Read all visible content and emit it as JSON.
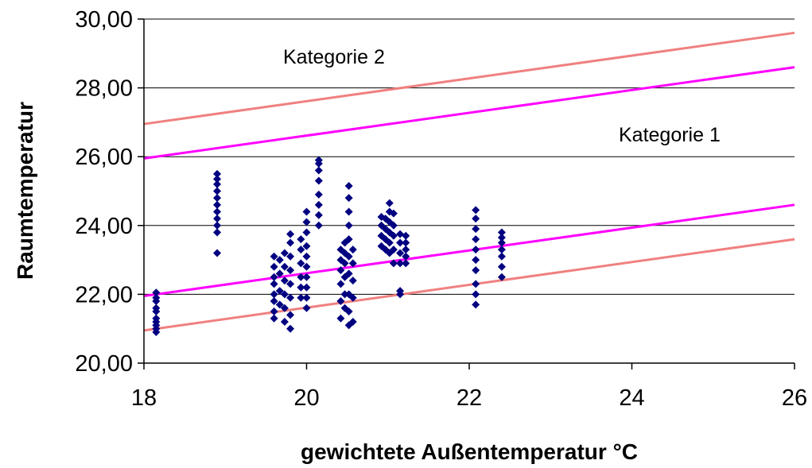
{
  "chart_data": {
    "type": "scatter",
    "title": "",
    "xlabel": "gewichtete Außentemperatur °C",
    "ylabel": "Raumtemperatur",
    "xlim": [
      18,
      26
    ],
    "ylim": [
      20,
      30
    ],
    "x_ticks": [
      "18",
      "20",
      "22",
      "24",
      "26"
    ],
    "y_ticks": [
      "20,00",
      "22,00",
      "24,00",
      "26,00",
      "28,00",
      "30,00"
    ],
    "grid": "horizontal",
    "annotations": [
      {
        "text": "Kategorie 2"
      },
      {
        "text": "Kategorie 1"
      }
    ],
    "colors": {
      "points": "#000080",
      "category1": "#ff00ff",
      "category2": "#f08080",
      "grid": "#000000"
    },
    "lines": [
      {
        "category": "Kategorie 2",
        "bound": "upper",
        "x": [
          18,
          26
        ],
        "y": [
          26.95,
          29.6
        ]
      },
      {
        "category": "Kategorie 1",
        "bound": "upper",
        "x": [
          18,
          26
        ],
        "y": [
          25.95,
          28.6
        ]
      },
      {
        "category": "Kategorie 1",
        "bound": "lower",
        "x": [
          18,
          26
        ],
        "y": [
          21.95,
          24.6
        ]
      },
      {
        "category": "Kategorie 2",
        "bound": "lower",
        "x": [
          18,
          26
        ],
        "y": [
          20.95,
          23.6
        ]
      }
    ],
    "points": [
      {
        "x": 18.15,
        "y": 20.9
      },
      {
        "x": 18.15,
        "y": 21.0
      },
      {
        "x": 18.15,
        "y": 21.1
      },
      {
        "x": 18.15,
        "y": 21.2
      },
      {
        "x": 18.15,
        "y": 21.3
      },
      {
        "x": 18.15,
        "y": 21.5
      },
      {
        "x": 18.15,
        "y": 21.6
      },
      {
        "x": 18.15,
        "y": 21.8
      },
      {
        "x": 18.15,
        "y": 21.9
      },
      {
        "x": 18.15,
        "y": 22.05
      },
      {
        "x": 18.9,
        "y": 23.2
      },
      {
        "x": 18.9,
        "y": 23.8
      },
      {
        "x": 18.9,
        "y": 24.0
      },
      {
        "x": 18.9,
        "y": 24.2
      },
      {
        "x": 18.9,
        "y": 24.4
      },
      {
        "x": 18.9,
        "y": 24.6
      },
      {
        "x": 18.9,
        "y": 24.8
      },
      {
        "x": 18.9,
        "y": 25.0
      },
      {
        "x": 18.9,
        "y": 25.2
      },
      {
        "x": 18.9,
        "y": 25.35
      },
      {
        "x": 18.9,
        "y": 25.5
      },
      {
        "x": 19.6,
        "y": 21.3
      },
      {
        "x": 19.6,
        "y": 21.5
      },
      {
        "x": 19.6,
        "y": 21.8
      },
      {
        "x": 19.6,
        "y": 22.0
      },
      {
        "x": 19.6,
        "y": 22.3
      },
      {
        "x": 19.6,
        "y": 22.5
      },
      {
        "x": 19.6,
        "y": 22.8
      },
      {
        "x": 19.6,
        "y": 23.1
      },
      {
        "x": 19.67,
        "y": 21.7
      },
      {
        "x": 19.67,
        "y": 22.1
      },
      {
        "x": 19.67,
        "y": 22.6
      },
      {
        "x": 19.67,
        "y": 23.0
      },
      {
        "x": 19.73,
        "y": 21.2
      },
      {
        "x": 19.73,
        "y": 21.6
      },
      {
        "x": 19.73,
        "y": 22.0
      },
      {
        "x": 19.73,
        "y": 22.4
      },
      {
        "x": 19.73,
        "y": 22.8
      },
      {
        "x": 19.73,
        "y": 23.2
      },
      {
        "x": 19.8,
        "y": 21.0
      },
      {
        "x": 19.8,
        "y": 21.4
      },
      {
        "x": 19.8,
        "y": 21.9
      },
      {
        "x": 19.8,
        "y": 22.3
      },
      {
        "x": 19.8,
        "y": 22.7
      },
      {
        "x": 19.8,
        "y": 23.1
      },
      {
        "x": 19.8,
        "y": 23.5
      },
      {
        "x": 19.8,
        "y": 23.75
      },
      {
        "x": 19.93,
        "y": 21.9
      },
      {
        "x": 19.93,
        "y": 22.2
      },
      {
        "x": 19.93,
        "y": 22.5
      },
      {
        "x": 19.93,
        "y": 22.9
      },
      {
        "x": 19.93,
        "y": 23.3
      },
      {
        "x": 19.93,
        "y": 23.6
      },
      {
        "x": 20.0,
        "y": 21.6
      },
      {
        "x": 20.0,
        "y": 21.9
      },
      {
        "x": 20.0,
        "y": 22.2
      },
      {
        "x": 20.0,
        "y": 22.5
      },
      {
        "x": 20.0,
        "y": 22.8
      },
      {
        "x": 20.0,
        "y": 23.1
      },
      {
        "x": 20.0,
        "y": 23.4
      },
      {
        "x": 20.0,
        "y": 23.8
      },
      {
        "x": 20.0,
        "y": 24.1
      },
      {
        "x": 20.0,
        "y": 24.4
      },
      {
        "x": 20.15,
        "y": 24.0
      },
      {
        "x": 20.15,
        "y": 24.3
      },
      {
        "x": 20.15,
        "y": 24.6
      },
      {
        "x": 20.15,
        "y": 24.9
      },
      {
        "x": 20.15,
        "y": 25.3
      },
      {
        "x": 20.15,
        "y": 25.6
      },
      {
        "x": 20.15,
        "y": 25.8
      },
      {
        "x": 20.15,
        "y": 25.9
      },
      {
        "x": 20.42,
        "y": 21.3
      },
      {
        "x": 20.42,
        "y": 21.8
      },
      {
        "x": 20.42,
        "y": 22.3
      },
      {
        "x": 20.42,
        "y": 22.7
      },
      {
        "x": 20.42,
        "y": 23.0
      },
      {
        "x": 20.42,
        "y": 23.3
      },
      {
        "x": 20.47,
        "y": 21.6
      },
      {
        "x": 20.47,
        "y": 22.0
      },
      {
        "x": 20.47,
        "y": 22.5
      },
      {
        "x": 20.47,
        "y": 22.9
      },
      {
        "x": 20.47,
        "y": 23.2
      },
      {
        "x": 20.47,
        "y": 23.5
      },
      {
        "x": 20.52,
        "y": 21.1
      },
      {
        "x": 20.52,
        "y": 21.5
      },
      {
        "x": 20.52,
        "y": 22.0
      },
      {
        "x": 20.52,
        "y": 22.6
      },
      {
        "x": 20.52,
        "y": 23.1
      },
      {
        "x": 20.52,
        "y": 23.6
      },
      {
        "x": 20.52,
        "y": 24.0
      },
      {
        "x": 20.52,
        "y": 24.4
      },
      {
        "x": 20.52,
        "y": 24.8
      },
      {
        "x": 20.52,
        "y": 25.15
      },
      {
        "x": 20.57,
        "y": 21.2
      },
      {
        "x": 20.57,
        "y": 21.9
      },
      {
        "x": 20.57,
        "y": 22.4
      },
      {
        "x": 20.57,
        "y": 22.9
      },
      {
        "x": 20.57,
        "y": 23.3
      },
      {
        "x": 20.92,
        "y": 23.4
      },
      {
        "x": 20.92,
        "y": 23.7
      },
      {
        "x": 20.92,
        "y": 24.0
      },
      {
        "x": 20.92,
        "y": 24.25
      },
      {
        "x": 20.97,
        "y": 23.3
      },
      {
        "x": 20.97,
        "y": 23.6
      },
      {
        "x": 20.97,
        "y": 23.9
      },
      {
        "x": 20.97,
        "y": 24.2
      },
      {
        "x": 21.02,
        "y": 23.2
      },
      {
        "x": 21.02,
        "y": 23.5
      },
      {
        "x": 21.02,
        "y": 23.8
      },
      {
        "x": 21.02,
        "y": 24.1
      },
      {
        "x": 21.02,
        "y": 24.4
      },
      {
        "x": 21.02,
        "y": 24.65
      },
      {
        "x": 21.07,
        "y": 22.9
      },
      {
        "x": 21.07,
        "y": 23.3
      },
      {
        "x": 21.07,
        "y": 23.7
      },
      {
        "x": 21.07,
        "y": 24.0
      },
      {
        "x": 21.07,
        "y": 24.35
      },
      {
        "x": 21.15,
        "y": 22.0
      },
      {
        "x": 21.15,
        "y": 22.1
      },
      {
        "x": 21.15,
        "y": 22.9
      },
      {
        "x": 21.15,
        "y": 23.2
      },
      {
        "x": 21.15,
        "y": 23.5
      },
      {
        "x": 21.15,
        "y": 23.75
      },
      {
        "x": 21.22,
        "y": 22.9
      },
      {
        "x": 21.22,
        "y": 23.1
      },
      {
        "x": 21.22,
        "y": 23.3
      },
      {
        "x": 21.22,
        "y": 23.5
      },
      {
        "x": 21.22,
        "y": 23.7
      },
      {
        "x": 22.08,
        "y": 21.7
      },
      {
        "x": 22.08,
        "y": 22.0
      },
      {
        "x": 22.08,
        "y": 22.3
      },
      {
        "x": 22.08,
        "y": 22.7
      },
      {
        "x": 22.08,
        "y": 23.0
      },
      {
        "x": 22.08,
        "y": 23.3
      },
      {
        "x": 22.08,
        "y": 23.6
      },
      {
        "x": 22.08,
        "y": 23.9
      },
      {
        "x": 22.08,
        "y": 24.2
      },
      {
        "x": 22.08,
        "y": 24.45
      },
      {
        "x": 22.4,
        "y": 22.5
      },
      {
        "x": 22.4,
        "y": 22.8
      },
      {
        "x": 22.4,
        "y": 23.1
      },
      {
        "x": 22.4,
        "y": 23.3
      },
      {
        "x": 22.4,
        "y": 23.5
      },
      {
        "x": 22.4,
        "y": 23.65
      },
      {
        "x": 22.4,
        "y": 23.8
      }
    ]
  }
}
